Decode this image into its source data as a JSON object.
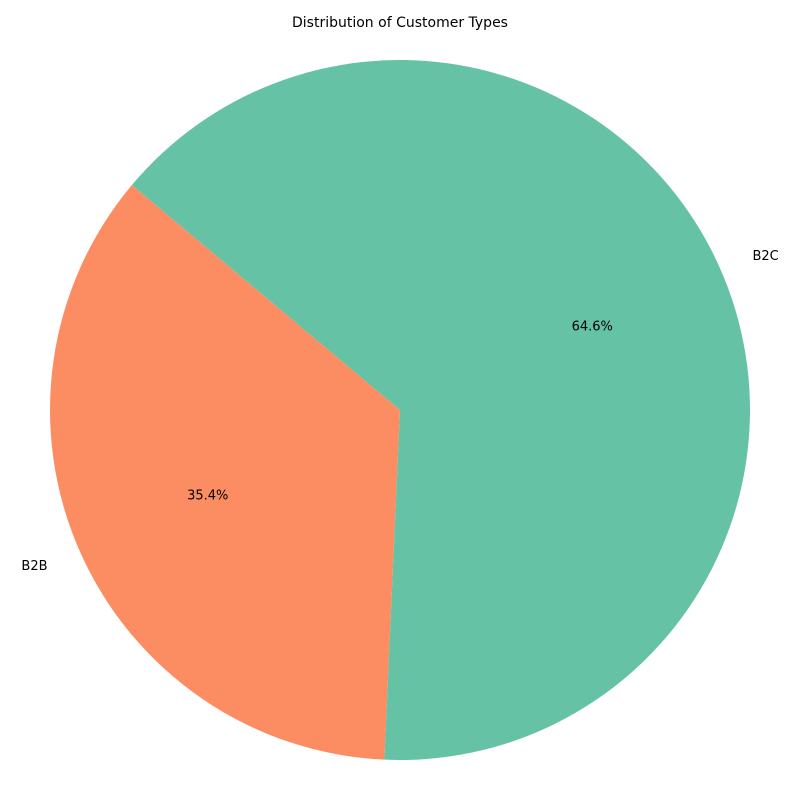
{
  "chart_data": {
    "type": "pie",
    "title": "Distribution of Customer Types",
    "slices": [
      {
        "label": "B2B",
        "value": 35.4,
        "pct_label": "35.4%",
        "color": "#fc8d62"
      },
      {
        "label": "B2C",
        "value": 64.6,
        "pct_label": "64.6%",
        "color": "#66c2a5"
      }
    ],
    "legend": "none"
  }
}
